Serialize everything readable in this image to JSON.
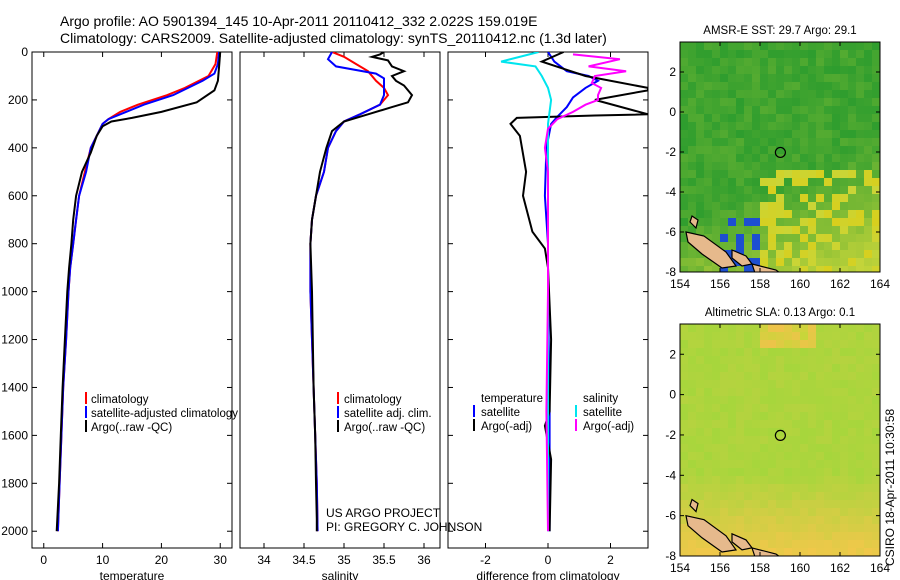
{
  "header": {
    "line1": "Argo profile: AO 5901394_145 10-Apr-2011 20110412_332 2.022S 159.019E",
    "line2": "Climatology: CARS2009. Satellite-adjusted climatology: synTS_20110412.nc (1.3d later)"
  },
  "colors": {
    "climatology": "#ff0000",
    "satellite": "#0000ff",
    "argo": "#000000",
    "salinity_satellite": "#00e5ee",
    "salinity_argo": "#ff00ff",
    "sst_map_base": "#2e9d2e",
    "sla_map_base": "#a6d63c",
    "land": "#e6b98c"
  },
  "chart_data": [
    {
      "type": "line",
      "panel": "temperature",
      "xlabel": "temperature",
      "xlim": [
        -2,
        32
      ],
      "ylim": [
        2070,
        0
      ],
      "xticks": [
        0,
        10,
        20,
        30
      ],
      "yticks": [
        0,
        200,
        400,
        600,
        800,
        1000,
        1200,
        1400,
        1600,
        1800,
        2000
      ],
      "legend": [
        "climatology",
        "satellite-adjusted climatology",
        "Argo(..raw -QC)"
      ],
      "series": [
        {
          "name": "climatology",
          "color": "red",
          "points": [
            [
              29.5,
              0
            ],
            [
              29.2,
              50
            ],
            [
              28,
              100
            ],
            [
              24,
              150
            ],
            [
              21,
              180
            ],
            [
              16,
              220
            ],
            [
              13,
              250
            ],
            [
              11,
              280
            ],
            [
              10,
              300
            ],
            [
              9,
              350
            ],
            [
              8,
              400
            ],
            [
              7,
              500
            ],
            [
              6,
              600
            ],
            [
              5.5,
              700
            ],
            [
              5,
              800
            ],
            [
              4.5,
              900
            ],
            [
              4.2,
              1000
            ],
            [
              3.8,
              1200
            ],
            [
              3.3,
              1400
            ],
            [
              3,
              1600
            ],
            [
              2.7,
              1800
            ],
            [
              2.4,
              2000
            ]
          ]
        },
        {
          "name": "satellite-adjusted climatology",
          "color": "blue",
          "points": [
            [
              29.8,
              0
            ],
            [
              29.6,
              50
            ],
            [
              29,
              90
            ],
            [
              27,
              120
            ],
            [
              22,
              180
            ],
            [
              17,
              220
            ],
            [
              13,
              260
            ],
            [
              11,
              280
            ],
            [
              10,
              300
            ],
            [
              9,
              350
            ],
            [
              8,
              400
            ],
            [
              7.2,
              500
            ],
            [
              6,
              600
            ],
            [
              5.5,
              700
            ],
            [
              5,
              800
            ],
            [
              4.5,
              900
            ],
            [
              4.2,
              1000
            ],
            [
              3.8,
              1200
            ],
            [
              3.3,
              1400
            ],
            [
              3,
              1600
            ],
            [
              2.7,
              1800
            ],
            [
              2.4,
              2000
            ]
          ]
        },
        {
          "name": "Argo(..raw -QC)",
          "color": "black",
          "points": [
            [
              30,
              0
            ],
            [
              29.8,
              60
            ],
            [
              29.6,
              120
            ],
            [
              29,
              160
            ],
            [
              26,
              210
            ],
            [
              20,
              250
            ],
            [
              15,
              275
            ],
            [
              11.5,
              290
            ],
            [
              10,
              310
            ],
            [
              9,
              350
            ],
            [
              8,
              420
            ],
            [
              6.5,
              500
            ],
            [
              5.5,
              600
            ],
            [
              5,
              700
            ],
            [
              4.7,
              800
            ],
            [
              4.3,
              900
            ],
            [
              4,
              1000
            ],
            [
              3.6,
              1200
            ],
            [
              3.2,
              1400
            ],
            [
              2.9,
              1600
            ],
            [
              2.6,
              1800
            ],
            [
              2.2,
              2000
            ]
          ]
        }
      ]
    },
    {
      "type": "line",
      "panel": "salinity",
      "xlabel": "salinity",
      "xlim": [
        33.7,
        36.2
      ],
      "ylim": [
        2070,
        0
      ],
      "xticks": [
        34,
        34.5,
        35,
        35.5,
        36
      ],
      "legend": [
        "climatology",
        "satellite adj. clim.",
        "Argo(..raw -QC)"
      ],
      "notes": [
        "US ARGO PROJECT",
        "PI: GREGORY C. JOHNSON"
      ],
      "series": [
        {
          "name": "climatology",
          "color": "red",
          "points": [
            [
              34.85,
              0
            ],
            [
              35,
              20
            ],
            [
              35.15,
              50
            ],
            [
              35.3,
              80
            ],
            [
              35.4,
              120
            ],
            [
              35.5,
              150
            ],
            [
              35.55,
              180
            ],
            [
              35.45,
              220
            ],
            [
              35.2,
              260
            ],
            [
              35,
              290
            ],
            [
              34.9,
              330
            ],
            [
              34.8,
              400
            ],
            [
              34.75,
              500
            ],
            [
              34.65,
              600
            ],
            [
              34.6,
              700
            ],
            [
              34.58,
              800
            ],
            [
              34.58,
              1000
            ],
            [
              34.6,
              1200
            ],
            [
              34.62,
              1400
            ],
            [
              34.64,
              1600
            ],
            [
              34.66,
              1800
            ],
            [
              34.67,
              2000
            ]
          ]
        },
        {
          "name": "satellite adj. clim.",
          "color": "blue",
          "points": [
            [
              34.85,
              0
            ],
            [
              34.8,
              30
            ],
            [
              34.9,
              60
            ],
            [
              35.4,
              90
            ],
            [
              35.5,
              110
            ],
            [
              35.5,
              150
            ],
            [
              35.5,
              180
            ],
            [
              35.45,
              220
            ],
            [
              35.2,
              260
            ],
            [
              35,
              290
            ],
            [
              34.9,
              330
            ],
            [
              34.8,
              400
            ],
            [
              34.75,
              500
            ],
            [
              34.65,
              600
            ],
            [
              34.6,
              700
            ],
            [
              34.58,
              800
            ],
            [
              34.58,
              1000
            ],
            [
              34.6,
              1200
            ],
            [
              34.62,
              1400
            ],
            [
              34.64,
              1600
            ],
            [
              34.66,
              1800
            ],
            [
              34.67,
              2000
            ]
          ]
        },
        {
          "name": "Argo(..raw -QC)",
          "color": "black",
          "points": [
            [
              35.5,
              0
            ],
            [
              35.45,
              10
            ],
            [
              35.35,
              20
            ],
            [
              35.55,
              35
            ],
            [
              35.6,
              60
            ],
            [
              35.75,
              80
            ],
            [
              35.6,
              100
            ],
            [
              35.65,
              120
            ],
            [
              35.75,
              140
            ],
            [
              35.85,
              180
            ],
            [
              35.8,
              210
            ],
            [
              35.6,
              230
            ],
            [
              35.3,
              260
            ],
            [
              35,
              290
            ],
            [
              34.85,
              330
            ],
            [
              34.78,
              400
            ],
            [
              34.7,
              500
            ],
            [
              34.65,
              600
            ],
            [
              34.6,
              700
            ],
            [
              34.58,
              800
            ],
            [
              34.6,
              1000
            ],
            [
              34.61,
              1200
            ],
            [
              34.62,
              1400
            ],
            [
              34.64,
              1600
            ],
            [
              34.65,
              1800
            ],
            [
              34.66,
              1950
            ],
            [
              34.66,
              2000
            ]
          ]
        }
      ]
    },
    {
      "type": "line",
      "panel": "difference",
      "xlabel": "difference from climatology",
      "xlim": [
        -3.2,
        3.2
      ],
      "ylim": [
        2070,
        0
      ],
      "xticks": [
        -2,
        0,
        2
      ],
      "legend_temperature_title": "temperature",
      "legend_salinity_title": "salinity",
      "legend": {
        "temperature": [
          "satellite",
          "Argo(-adj)"
        ],
        "salinity": [
          "satellite",
          "Argo(-adj)"
        ]
      },
      "series": [
        {
          "name": "temperature satellite",
          "color": "blue",
          "points": [
            [
              0,
              0
            ],
            [
              0.2,
              40
            ],
            [
              0.6,
              80
            ],
            [
              1.3,
              100
            ],
            [
              1.6,
              120
            ],
            [
              1.2,
              150
            ],
            [
              0.8,
              190
            ],
            [
              0.6,
              230
            ],
            [
              0.3,
              270
            ],
            [
              0.1,
              300
            ],
            [
              -0.05,
              400
            ],
            [
              -0.1,
              600
            ],
            [
              0,
              800
            ],
            [
              0,
              1000
            ],
            [
              0.05,
              1500
            ],
            [
              0.05,
              2000
            ]
          ]
        },
        {
          "name": "temperature Argo(-adj)",
          "color": "black",
          "points": [
            [
              0.5,
              0
            ],
            [
              -0.2,
              40
            ],
            [
              0.5,
              70
            ],
            [
              1.2,
              100
            ],
            [
              3.2,
              150
            ],
            [
              3.2,
              160
            ],
            [
              1.5,
              200
            ],
            [
              3.2,
              260
            ],
            [
              1.5,
              265
            ],
            [
              -1,
              275
            ],
            [
              -1.2,
              300
            ],
            [
              -0.9,
              350
            ],
            [
              -0.7,
              500
            ],
            [
              -0.8,
              600
            ],
            [
              -0.5,
              750
            ],
            [
              -0.1,
              820
            ],
            [
              0,
              900
            ],
            [
              0.1,
              1200
            ],
            [
              0.05,
              1500
            ],
            [
              -0.1,
              1560
            ],
            [
              0.1,
              1700
            ],
            [
              0.05,
              2000
            ]
          ]
        },
        {
          "name": "salinity satellite",
          "color": "cyan",
          "points": [
            [
              -0.3,
              0
            ],
            [
              -1.5,
              40
            ],
            [
              -0.4,
              60
            ],
            [
              -0.2,
              100
            ],
            [
              0,
              150
            ],
            [
              0.1,
              200
            ],
            [
              0,
              300
            ],
            [
              0,
              500
            ],
            [
              0,
              1000
            ],
            [
              0,
              1500
            ],
            [
              0,
              2000
            ]
          ]
        },
        {
          "name": "salinity Argo(-adj)",
          "color": "magenta",
          "points": [
            [
              0.8,
              10
            ],
            [
              2.3,
              30
            ],
            [
              1.3,
              60
            ],
            [
              2.5,
              80
            ],
            [
              1.5,
              100
            ],
            [
              1.4,
              130
            ],
            [
              1.7,
              150
            ],
            [
              1.6,
              180
            ],
            [
              1.6,
              200
            ],
            [
              1.2,
              220
            ],
            [
              0.8,
              250
            ],
            [
              0.3,
              280
            ],
            [
              0,
              320
            ],
            [
              -0.1,
              400
            ],
            [
              0,
              500
            ],
            [
              0,
              1000
            ],
            [
              -0.05,
              1500
            ],
            [
              0,
              2000
            ]
          ]
        }
      ]
    },
    {
      "type": "heatmap",
      "panel": "map-sst",
      "title": "AMSR-E SST: 29.7 Argo: 29.1",
      "xlim": [
        154,
        164
      ],
      "ylim": [
        -8,
        3.5
      ],
      "xticks": [
        154,
        156,
        158,
        160,
        162,
        164
      ],
      "yticks": [
        2,
        0,
        -2,
        -4,
        -6,
        -8
      ],
      "marker": [
        159.019,
        -2.022
      ]
    },
    {
      "type": "heatmap",
      "panel": "map-sla",
      "title": "Altimetric SLA: 0.13 Argo: 0.1",
      "xlim": [
        154,
        164
      ],
      "ylim": [
        -8,
        3.5
      ],
      "xticks": [
        154,
        156,
        158,
        160,
        162,
        164
      ],
      "yticks": [
        2,
        0,
        -2,
        -4,
        -6,
        -8
      ],
      "marker": [
        159.019,
        -2.022
      ]
    }
  ],
  "timestamp": "CSIRO 18-Apr-2011 10:30:58"
}
